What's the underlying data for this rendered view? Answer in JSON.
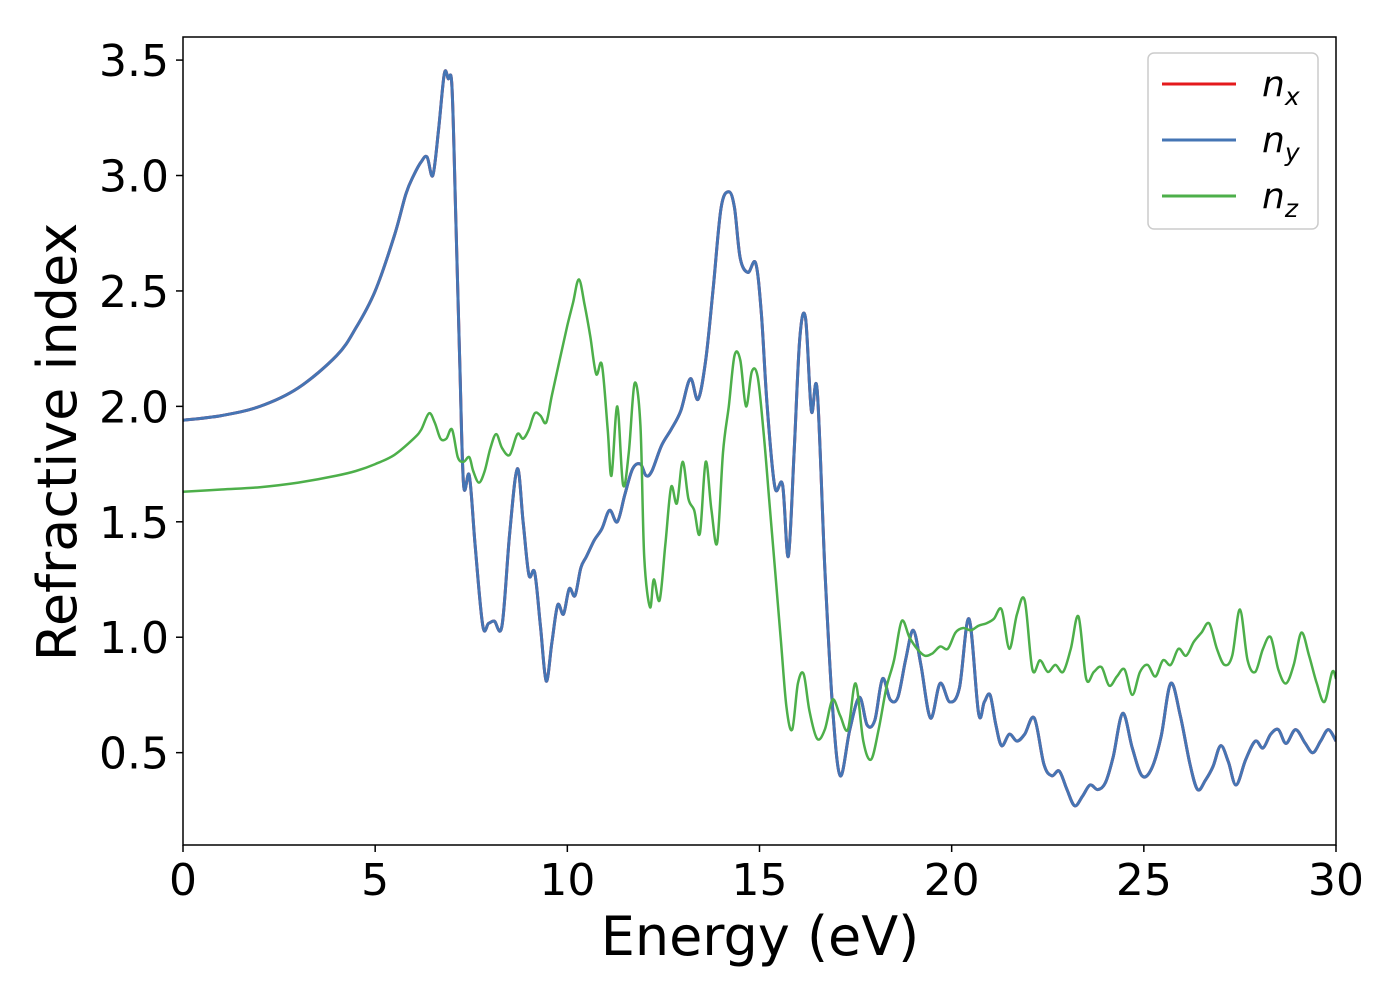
{
  "chart_data": {
    "type": "line",
    "title": "",
    "xlabel": "Energy (eV)",
    "ylabel": "Refractive index",
    "xlim": [
      0,
      30
    ],
    "ylim": [
      0.1,
      3.6
    ],
    "xticks": [
      0,
      5,
      10,
      15,
      20,
      25,
      30
    ],
    "yticks": [
      0.5,
      1.0,
      1.5,
      2.0,
      2.5,
      3.0,
      3.5
    ],
    "xtick_labels": [
      "0",
      "5",
      "10",
      "15",
      "20",
      "25",
      "30"
    ],
    "ytick_labels": [
      "0.5",
      "1.0",
      "1.5",
      "2.0",
      "2.5",
      "3.0",
      "3.5"
    ],
    "grid": false,
    "legend_position": "top-right",
    "series": [
      {
        "name": "n",
        "subscript": "x",
        "color": "#e41a1c",
        "x": [
          0,
          1,
          2,
          3,
          4,
          4.5,
          5,
          5.5,
          5.8,
          6.0,
          6.2,
          6.35,
          6.5,
          6.65,
          6.8,
          6.9,
          7.0,
          7.1,
          7.2,
          7.3,
          7.45,
          7.6,
          7.8,
          7.95,
          8.1,
          8.3,
          8.5,
          8.7,
          8.85,
          9.0,
          9.15,
          9.3,
          9.45,
          9.6,
          9.75,
          9.9,
          10.05,
          10.2,
          10.35,
          10.5,
          10.7,
          10.9,
          11.1,
          11.3,
          11.5,
          11.7,
          11.9,
          12.05,
          12.2,
          12.45,
          12.7,
          12.95,
          13.2,
          13.4,
          13.6,
          13.8,
          14.0,
          14.2,
          14.35,
          14.5,
          14.7,
          14.9,
          15.05,
          15.2,
          15.4,
          15.6,
          15.75,
          15.9,
          16.05,
          16.2,
          16.35,
          16.5,
          16.7,
          16.9,
          17.1,
          17.35,
          17.6,
          17.8,
          18.0,
          18.2,
          18.4,
          18.6,
          18.8,
          19.0,
          19.2,
          19.45,
          19.7,
          19.95,
          20.2,
          20.45,
          20.7,
          20.85,
          21.0,
          21.15,
          21.3,
          21.5,
          21.7,
          21.9,
          22.15,
          22.4,
          22.6,
          22.8,
          23.0,
          23.2,
          23.4,
          23.6,
          23.8,
          24.0,
          24.2,
          24.45,
          24.7,
          24.95,
          25.2,
          25.45,
          25.7,
          25.95,
          26.2,
          26.4,
          26.6,
          26.8,
          27.0,
          27.2,
          27.4,
          27.65,
          27.9,
          28.1,
          28.3,
          28.5,
          28.7,
          28.95,
          29.2,
          29.4,
          29.6,
          29.8,
          30.0
        ],
        "y": [
          1.94,
          1.96,
          2.0,
          2.08,
          2.22,
          2.34,
          2.5,
          2.74,
          2.92,
          3.0,
          3.06,
          3.08,
          3.0,
          3.2,
          3.44,
          3.42,
          3.38,
          2.8,
          2.2,
          1.66,
          1.7,
          1.4,
          1.05,
          1.06,
          1.07,
          1.05,
          1.45,
          1.73,
          1.5,
          1.27,
          1.28,
          1.05,
          0.81,
          0.98,
          1.14,
          1.1,
          1.21,
          1.18,
          1.3,
          1.35,
          1.42,
          1.47,
          1.55,
          1.5,
          1.62,
          1.73,
          1.75,
          1.7,
          1.72,
          1.83,
          1.9,
          1.98,
          2.12,
          2.03,
          2.2,
          2.52,
          2.86,
          2.93,
          2.86,
          2.64,
          2.58,
          2.62,
          2.4,
          2.0,
          1.65,
          1.66,
          1.35,
          1.8,
          2.3,
          2.38,
          1.98,
          2.07,
          1.3,
          0.7,
          0.4,
          0.6,
          0.74,
          0.62,
          0.64,
          0.82,
          0.73,
          0.74,
          0.9,
          1.03,
          0.88,
          0.65,
          0.8,
          0.72,
          0.78,
          1.08,
          0.67,
          0.72,
          0.75,
          0.62,
          0.53,
          0.58,
          0.55,
          0.58,
          0.65,
          0.45,
          0.4,
          0.42,
          0.34,
          0.27,
          0.31,
          0.36,
          0.34,
          0.37,
          0.48,
          0.67,
          0.52,
          0.4,
          0.43,
          0.57,
          0.8,
          0.66,
          0.45,
          0.34,
          0.38,
          0.44,
          0.53,
          0.46,
          0.36,
          0.47,
          0.55,
          0.52,
          0.58,
          0.6,
          0.54,
          0.6,
          0.54,
          0.5,
          0.55,
          0.6,
          0.55
        ],
        "hidden_under": "n_y"
      },
      {
        "name": "n",
        "subscript": "y",
        "color": "#4575b4",
        "same_as": "n_x"
      },
      {
        "name": "n",
        "subscript": "z",
        "color": "#4daf4a",
        "x": [
          0,
          1,
          2,
          3,
          4,
          4.5,
          5,
          5.5,
          6.0,
          6.2,
          6.4,
          6.55,
          6.7,
          6.85,
          7.0,
          7.15,
          7.3,
          7.45,
          7.55,
          7.7,
          7.85,
          8.0,
          8.15,
          8.3,
          8.5,
          8.7,
          8.85,
          9.0,
          9.15,
          9.3,
          9.45,
          9.6,
          9.8,
          10.0,
          10.15,
          10.3,
          10.45,
          10.6,
          10.75,
          10.9,
          11.05,
          11.15,
          11.3,
          11.45,
          11.6,
          11.75,
          11.9,
          12.0,
          12.15,
          12.25,
          12.4,
          12.55,
          12.7,
          12.85,
          13.0,
          13.15,
          13.3,
          13.45,
          13.6,
          13.75,
          13.9,
          14.05,
          14.2,
          14.35,
          14.5,
          14.65,
          14.8,
          14.95,
          15.1,
          15.25,
          15.4,
          15.55,
          15.7,
          15.85,
          16.0,
          16.15,
          16.3,
          16.5,
          16.7,
          16.9,
          17.1,
          17.3,
          17.5,
          17.7,
          17.9,
          18.1,
          18.3,
          18.5,
          18.7,
          18.9,
          19.1,
          19.3,
          19.5,
          19.7,
          19.9,
          20.1,
          20.3,
          20.5,
          20.7,
          20.9,
          21.1,
          21.3,
          21.5,
          21.7,
          21.9,
          22.1,
          22.3,
          22.5,
          22.7,
          22.9,
          23.1,
          23.3,
          23.5,
          23.7,
          23.9,
          24.1,
          24.3,
          24.5,
          24.7,
          24.9,
          25.1,
          25.3,
          25.5,
          25.7,
          25.9,
          26.1,
          26.3,
          26.5,
          26.7,
          26.9,
          27.1,
          27.3,
          27.5,
          27.7,
          27.9,
          28.1,
          28.3,
          28.5,
          28.7,
          28.9,
          29.1,
          29.3,
          29.5,
          29.7,
          29.9,
          30.0
        ],
        "y": [
          1.63,
          1.64,
          1.65,
          1.67,
          1.7,
          1.72,
          1.75,
          1.79,
          1.86,
          1.9,
          1.97,
          1.93,
          1.86,
          1.86,
          1.9,
          1.78,
          1.76,
          1.78,
          1.72,
          1.67,
          1.72,
          1.82,
          1.88,
          1.82,
          1.79,
          1.88,
          1.86,
          1.9,
          1.97,
          1.96,
          1.93,
          2.05,
          2.2,
          2.35,
          2.45,
          2.55,
          2.44,
          2.3,
          2.14,
          2.18,
          1.9,
          1.7,
          2.0,
          1.66,
          1.8,
          2.1,
          1.92,
          1.35,
          1.13,
          1.25,
          1.16,
          1.4,
          1.65,
          1.58,
          1.76,
          1.6,
          1.55,
          1.45,
          1.76,
          1.55,
          1.41,
          1.8,
          2.0,
          2.22,
          2.2,
          2.0,
          2.15,
          2.13,
          1.9,
          1.6,
          1.3,
          1.0,
          0.7,
          0.6,
          0.8,
          0.84,
          0.68,
          0.56,
          0.6,
          0.73,
          0.66,
          0.6,
          0.8,
          0.55,
          0.47,
          0.6,
          0.78,
          0.9,
          1.07,
          1.0,
          0.95,
          0.92,
          0.93,
          0.96,
          0.95,
          1.02,
          1.04,
          1.03,
          1.05,
          1.06,
          1.08,
          1.12,
          0.95,
          1.1,
          1.16,
          0.86,
          0.9,
          0.85,
          0.88,
          0.85,
          0.95,
          1.09,
          0.82,
          0.85,
          0.87,
          0.79,
          0.83,
          0.86,
          0.75,
          0.85,
          0.88,
          0.83,
          0.9,
          0.88,
          0.95,
          0.92,
          0.98,
          1.02,
          1.06,
          0.95,
          0.88,
          0.92,
          1.12,
          0.9,
          0.85,
          0.95,
          1.0,
          0.86,
          0.8,
          0.88,
          1.02,
          0.92,
          0.8,
          0.72,
          0.85,
          0.82
        ],
        "line_width": 3
      }
    ]
  }
}
